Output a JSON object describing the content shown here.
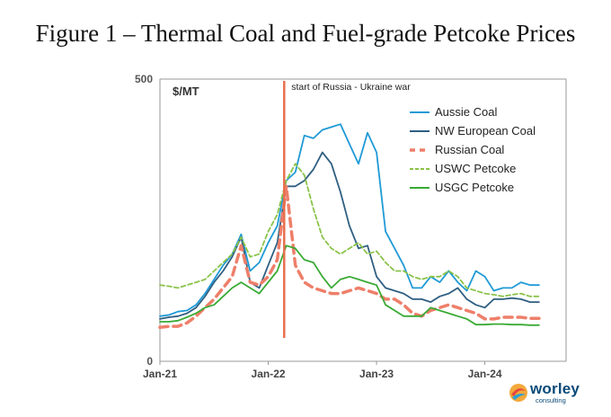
{
  "page_title": "Figure 1 – Thermal Coal and Fuel-grade Petcoke Prices",
  "logo": {
    "name": "worley",
    "tagline": "consulting"
  },
  "chart_data": {
    "type": "line",
    "unit_label": "$/MT",
    "ylim": [
      0,
      500
    ],
    "y_ticks": [
      "500",
      "0"
    ],
    "x_range": [
      "2021-01",
      "2024-10"
    ],
    "x_ticks": [
      "Jan-21",
      "Jan-22",
      "Jan-23",
      "Jan-24"
    ],
    "grid": false,
    "legend_position": "top-right",
    "annotations": [
      {
        "text": "start of Russia - Ukraine war",
        "x": "2022-02-24",
        "color": "#e8704f"
      }
    ],
    "series": [
      {
        "name": "Aussie Coal",
        "color": "#1f9ad6",
        "style": "solid",
        "points": [
          [
            "2021-01",
            80
          ],
          [
            "2021-02",
            82
          ],
          [
            "2021-03",
            88
          ],
          [
            "2021-04",
            90
          ],
          [
            "2021-05",
            100
          ],
          [
            "2021-06",
            120
          ],
          [
            "2021-07",
            145
          ],
          [
            "2021-08",
            170
          ],
          [
            "2021-09",
            190
          ],
          [
            "2021-10",
            225
          ],
          [
            "2021-11",
            160
          ],
          [
            "2021-12",
            175
          ],
          [
            "2022-01",
            210
          ],
          [
            "2022-02",
            240
          ],
          [
            "2022-03",
            320
          ],
          [
            "2022-04",
            335
          ],
          [
            "2022-05",
            400
          ],
          [
            "2022-06",
            395
          ],
          [
            "2022-07",
            410
          ],
          [
            "2022-08",
            415
          ],
          [
            "2022-09",
            420
          ],
          [
            "2022-10",
            385
          ],
          [
            "2022-11",
            350
          ],
          [
            "2022-12",
            405
          ],
          [
            "2023-01",
            370
          ],
          [
            "2023-02",
            230
          ],
          [
            "2023-03",
            200
          ],
          [
            "2023-04",
            170
          ],
          [
            "2023-05",
            130
          ],
          [
            "2023-06",
            130
          ],
          [
            "2023-07",
            150
          ],
          [
            "2023-08",
            140
          ],
          [
            "2023-09",
            160
          ],
          [
            "2023-10",
            140
          ],
          [
            "2023-11",
            125
          ],
          [
            "2023-12",
            160
          ],
          [
            "2024-01",
            150
          ],
          [
            "2024-02",
            125
          ],
          [
            "2024-03",
            130
          ],
          [
            "2024-04",
            130
          ],
          [
            "2024-05",
            140
          ],
          [
            "2024-06",
            135
          ],
          [
            "2024-07",
            135
          ]
        ]
      },
      {
        "name": "NW European Coal",
        "color": "#2f5f82",
        "style": "solid",
        "points": [
          [
            "2021-01",
            75
          ],
          [
            "2021-02",
            78
          ],
          [
            "2021-03",
            80
          ],
          [
            "2021-04",
            85
          ],
          [
            "2021-05",
            95
          ],
          [
            "2021-06",
            115
          ],
          [
            "2021-07",
            140
          ],
          [
            "2021-08",
            160
          ],
          [
            "2021-09",
            185
          ],
          [
            "2021-10",
            220
          ],
          [
            "2021-11",
            140
          ],
          [
            "2021-12",
            130
          ],
          [
            "2022-01",
            170
          ],
          [
            "2022-02",
            210
          ],
          [
            "2022-03",
            310
          ],
          [
            "2022-04",
            310
          ],
          [
            "2022-05",
            320
          ],
          [
            "2022-06",
            340
          ],
          [
            "2022-07",
            370
          ],
          [
            "2022-08",
            350
          ],
          [
            "2022-09",
            300
          ],
          [
            "2022-10",
            240
          ],
          [
            "2022-11",
            200
          ],
          [
            "2022-12",
            205
          ],
          [
            "2023-01",
            150
          ],
          [
            "2023-02",
            130
          ],
          [
            "2023-03",
            125
          ],
          [
            "2023-04",
            120
          ],
          [
            "2023-05",
            110
          ],
          [
            "2023-06",
            110
          ],
          [
            "2023-07",
            105
          ],
          [
            "2023-08",
            115
          ],
          [
            "2023-09",
            120
          ],
          [
            "2023-10",
            130
          ],
          [
            "2023-11",
            110
          ],
          [
            "2023-12",
            100
          ],
          [
            "2024-01",
            95
          ],
          [
            "2024-02",
            110
          ],
          [
            "2024-03",
            110
          ],
          [
            "2024-04",
            112
          ],
          [
            "2024-05",
            110
          ],
          [
            "2024-06",
            105
          ],
          [
            "2024-07",
            105
          ]
        ]
      },
      {
        "name": "Russian Coal",
        "color": "#ee7f6a",
        "style": "dashed",
        "points": [
          [
            "2021-01",
            60
          ],
          [
            "2021-02",
            62
          ],
          [
            "2021-03",
            62
          ],
          [
            "2021-04",
            68
          ],
          [
            "2021-05",
            80
          ],
          [
            "2021-06",
            95
          ],
          [
            "2021-07",
            110
          ],
          [
            "2021-08",
            130
          ],
          [
            "2021-09",
            150
          ],
          [
            "2021-10",
            205
          ],
          [
            "2021-11",
            140
          ],
          [
            "2021-12",
            135
          ],
          [
            "2022-01",
            150
          ],
          [
            "2022-02",
            180
          ],
          [
            "2022-03",
            310
          ],
          [
            "2022-04",
            170
          ],
          [
            "2022-05",
            140
          ],
          [
            "2022-06",
            130
          ],
          [
            "2022-07",
            125
          ],
          [
            "2022-08",
            120
          ],
          [
            "2022-09",
            120
          ],
          [
            "2022-10",
            125
          ],
          [
            "2022-11",
            130
          ],
          [
            "2022-12",
            125
          ],
          [
            "2023-01",
            120
          ],
          [
            "2023-02",
            110
          ],
          [
            "2023-03",
            110
          ],
          [
            "2023-04",
            100
          ],
          [
            "2023-05",
            85
          ],
          [
            "2023-06",
            80
          ],
          [
            "2023-07",
            90
          ],
          [
            "2023-08",
            95
          ],
          [
            "2023-09",
            100
          ],
          [
            "2023-10",
            95
          ],
          [
            "2023-11",
            90
          ],
          [
            "2023-12",
            85
          ],
          [
            "2024-01",
            75
          ],
          [
            "2024-02",
            75
          ],
          [
            "2024-03",
            78
          ],
          [
            "2024-04",
            78
          ],
          [
            "2024-05",
            78
          ],
          [
            "2024-06",
            76
          ],
          [
            "2024-07",
            76
          ]
        ]
      },
      {
        "name": "USWC Petcoke",
        "color": "#8bc34a",
        "style": "dashed",
        "points": [
          [
            "2021-01",
            135
          ],
          [
            "2021-02",
            133
          ],
          [
            "2021-03",
            130
          ],
          [
            "2021-04",
            135
          ],
          [
            "2021-05",
            140
          ],
          [
            "2021-06",
            145
          ],
          [
            "2021-07",
            160
          ],
          [
            "2021-08",
            175
          ],
          [
            "2021-09",
            190
          ],
          [
            "2021-10",
            220
          ],
          [
            "2021-11",
            185
          ],
          [
            "2021-12",
            190
          ],
          [
            "2022-01",
            230
          ],
          [
            "2022-02",
            260
          ],
          [
            "2022-03",
            320
          ],
          [
            "2022-04",
            350
          ],
          [
            "2022-05",
            330
          ],
          [
            "2022-06",
            270
          ],
          [
            "2022-07",
            220
          ],
          [
            "2022-08",
            200
          ],
          [
            "2022-09",
            190
          ],
          [
            "2022-10",
            200
          ],
          [
            "2022-11",
            210
          ],
          [
            "2022-12",
            190
          ],
          [
            "2023-01",
            195
          ],
          [
            "2023-02",
            175
          ],
          [
            "2023-03",
            160
          ],
          [
            "2023-04",
            160
          ],
          [
            "2023-05",
            150
          ],
          [
            "2023-06",
            145
          ],
          [
            "2023-07",
            150
          ],
          [
            "2023-08",
            150
          ],
          [
            "2023-09",
            160
          ],
          [
            "2023-10",
            150
          ],
          [
            "2023-11",
            130
          ],
          [
            "2023-12",
            125
          ],
          [
            "2024-01",
            120
          ],
          [
            "2024-02",
            118
          ],
          [
            "2024-03",
            115
          ],
          [
            "2024-04",
            118
          ],
          [
            "2024-05",
            120
          ],
          [
            "2024-06",
            115
          ],
          [
            "2024-07",
            115
          ]
        ]
      },
      {
        "name": "USGC Petcoke",
        "color": "#3aaa35",
        "style": "solid",
        "points": [
          [
            "2021-01",
            70
          ],
          [
            "2021-02",
            70
          ],
          [
            "2021-03",
            72
          ],
          [
            "2021-04",
            78
          ],
          [
            "2021-05",
            85
          ],
          [
            "2021-06",
            95
          ],
          [
            "2021-07",
            100
          ],
          [
            "2021-08",
            115
          ],
          [
            "2021-09",
            130
          ],
          [
            "2021-10",
            140
          ],
          [
            "2021-11",
            130
          ],
          [
            "2021-12",
            120
          ],
          [
            "2022-01",
            140
          ],
          [
            "2022-02",
            160
          ],
          [
            "2022-03",
            205
          ],
          [
            "2022-04",
            200
          ],
          [
            "2022-05",
            180
          ],
          [
            "2022-06",
            175
          ],
          [
            "2022-07",
            150
          ],
          [
            "2022-08",
            130
          ],
          [
            "2022-09",
            145
          ],
          [
            "2022-10",
            150
          ],
          [
            "2022-11",
            145
          ],
          [
            "2022-12",
            140
          ],
          [
            "2023-01",
            135
          ],
          [
            "2023-02",
            100
          ],
          [
            "2023-03",
            90
          ],
          [
            "2023-04",
            80
          ],
          [
            "2023-05",
            80
          ],
          [
            "2023-06",
            80
          ],
          [
            "2023-07",
            95
          ],
          [
            "2023-08",
            90
          ],
          [
            "2023-09",
            85
          ],
          [
            "2023-10",
            80
          ],
          [
            "2023-11",
            75
          ],
          [
            "2023-12",
            65
          ],
          [
            "2024-01",
            65
          ],
          [
            "2024-02",
            66
          ],
          [
            "2024-03",
            66
          ],
          [
            "2024-04",
            65
          ],
          [
            "2024-05",
            65
          ],
          [
            "2024-06",
            64
          ],
          [
            "2024-07",
            64
          ]
        ]
      }
    ]
  }
}
